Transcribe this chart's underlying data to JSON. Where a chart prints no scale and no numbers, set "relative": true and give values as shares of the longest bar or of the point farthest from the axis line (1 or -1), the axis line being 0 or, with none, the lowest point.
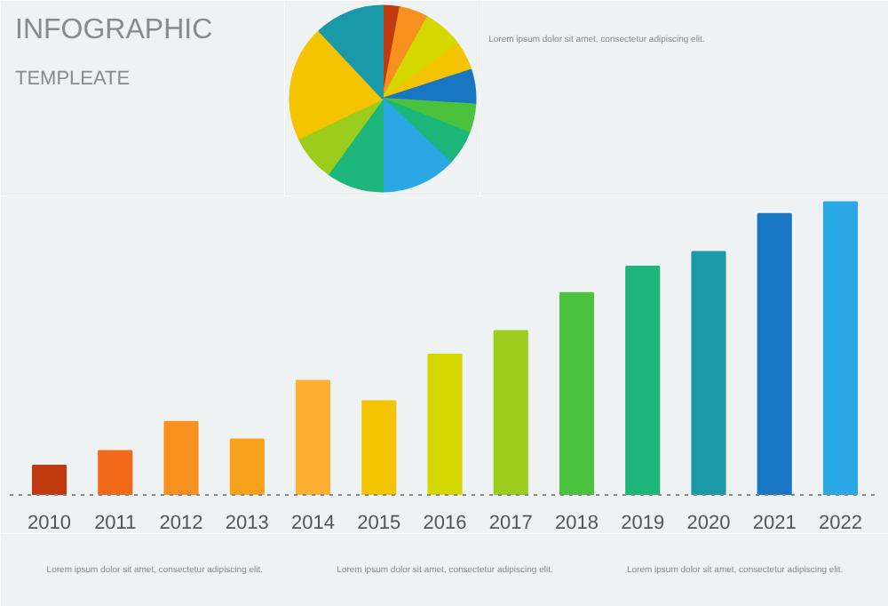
{
  "chart_data": [
    {
      "type": "bar",
      "title": "INFOGRAPHIC",
      "subtitle": "TEMPLEATE",
      "relative": true,
      "categories": [
        "2010",
        "2011",
        "2012",
        "2013",
        "2014",
        "2015",
        "2016",
        "2017",
        "2018",
        "2019",
        "2020",
        "2021",
        "2022"
      ],
      "values": [
        0.1,
        0.15,
        0.25,
        0.19,
        0.39,
        0.32,
        0.48,
        0.56,
        0.69,
        0.78,
        0.83,
        0.96,
        1
      ],
      "colors": [
        "#c0390f",
        "#f06a1a",
        "#f7901e",
        "#f9a11b",
        "#fbb034",
        "#f5c400",
        "#d4d800",
        "#9ccc1c",
        "#4cc13d",
        "#1cb57a",
        "#1a9aa8",
        "#1976c2",
        "#2aa8e6"
      ],
      "grid": false,
      "annotations": [
        "Lorem ipsum dolor sit amet, consectetur adipiscing elit.",
        "Lorem ipsum dolor sit amet, consectetur adipiscing elit.",
        "Lorem ipsum dolor sit amet, consectetur adipiscing elit.",
        "Lorem ipsum dolor sit amet, consectetur adipiscing elit."
      ]
    },
    {
      "type": "pie",
      "categories": [
        null,
        null,
        null,
        null,
        null,
        null,
        null,
        null,
        null,
        null,
        null,
        null
      ],
      "values": [
        3,
        5,
        7,
        5,
        6,
        5,
        6,
        13,
        10,
        8,
        20,
        12
      ],
      "colors": [
        "#c0390f",
        "#f7901e",
        "#d4d800",
        "#f5c400",
        "#1976c2",
        "#4cc13d",
        "#1cb57a",
        "#2aa8e6",
        "#1cb57a",
        "#9ccc1c",
        "#f5c400",
        "#1a9aa8"
      ]
    }
  ]
}
